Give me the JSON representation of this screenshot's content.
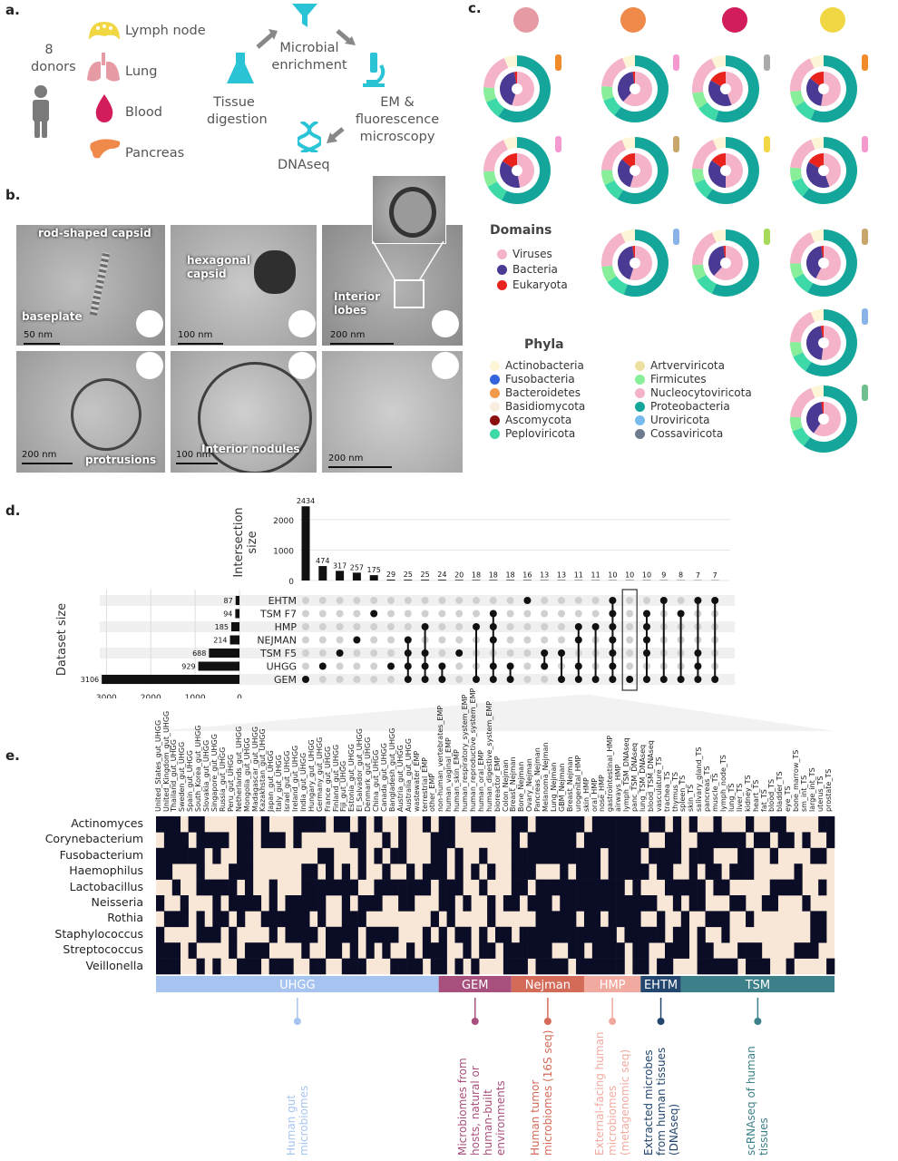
{
  "panels": {
    "a": "a.",
    "b": "b.",
    "c": "c.",
    "d": "d.",
    "e": "e."
  },
  "panel_a": {
    "donors_count": "8",
    "donors_label": "donors",
    "tissues": [
      "Lymph node",
      "Lung",
      "Blood",
      "Pancreas"
    ],
    "steps": [
      "Tissue digestion",
      "Microbial enrichment",
      "EM & fluorescence microscopy",
      "DNAseq"
    ]
  },
  "panel_b": {
    "labels": [
      "rod-shaped capsid",
      "baseplate",
      "hexagonal capsid",
      "Interior lobes",
      "protrusions",
      "Interior nodules"
    ],
    "scalebars": [
      "50  nm",
      "100  nm",
      "200  nm",
      "200  nm",
      "100  nm",
      "200  nm"
    ]
  },
  "panel_c": {
    "domains_title": "Domains",
    "domains": [
      {
        "name": "Viruses",
        "color": "#f4b3c8"
      },
      {
        "name": "Bacteria",
        "color": "#4a3a93"
      },
      {
        "name": "Eukaryota",
        "color": "#e8231e"
      }
    ],
    "phyla_title": "Phyla",
    "phyla": [
      {
        "name": "Actinobacteria",
        "color": "#fdf6d6"
      },
      {
        "name": "Artverviricota",
        "color": "#eee0a0"
      },
      {
        "name": "Fusobacteria",
        "color": "#3366dd"
      },
      {
        "name": "Firmicutes",
        "color": "#88ee99"
      },
      {
        "name": "Bacteroidetes",
        "color": "#f39a4b"
      },
      {
        "name": "Nucleocytoviricota",
        "color": "#f4b3c8"
      },
      {
        "name": "Basidiomycota",
        "color": "#faeee0"
      },
      {
        "name": "Proteobacteria",
        "color": "#14a69a"
      },
      {
        "name": "Ascomycota",
        "color": "#8b0f0f"
      },
      {
        "name": "Uroviricota",
        "color": "#77bbee"
      },
      {
        "name": "Peploviricota",
        "color": "#3ed9a9"
      },
      {
        "name": "Cossaviricota",
        "color": "#6d7b90"
      }
    ]
  },
  "chart_data": [
    {
      "type": "bar",
      "title": "",
      "ylabel": "Intersection size",
      "ylim": [
        0,
        2500
      ],
      "yticks": [
        "0",
        "1000",
        "2000"
      ],
      "values": [
        2434,
        474,
        317,
        257,
        175,
        29,
        25,
        25,
        24,
        20,
        18,
        18,
        18,
        16,
        13,
        13,
        11,
        11,
        10,
        10,
        10,
        9,
        8,
        7,
        7
      ],
      "value_labels": [
        "2434",
        "474",
        "317",
        "257",
        "175",
        "29",
        "25",
        "25",
        "24",
        "20",
        "18",
        "18",
        "18",
        "16",
        "13",
        "13",
        "11",
        "11",
        "10",
        "10",
        "10",
        "9",
        "8",
        "7",
        "7"
      ]
    },
    {
      "type": "bar",
      "orientation": "horizontal",
      "xlabel": "",
      "ylabel": "Dataset size",
      "categories": [
        "EHTM",
        "TSM F7",
        "HMP",
        "NEJMAN",
        "TSM F5",
        "UHGG",
        "GEM"
      ],
      "values": [
        87,
        94,
        185,
        214,
        688,
        929,
        3106
      ],
      "value_labels": [
        "87",
        "94",
        "185",
        "214",
        "688",
        "929",
        "3106"
      ],
      "xticks": [
        "3000",
        "2000",
        "1000",
        "0"
      ],
      "xlim": [
        3150,
        0
      ]
    },
    {
      "type": "heatmap",
      "rows": [
        "Actinomyces",
        "Corynebacterium",
        "Fusobacterium",
        "Haemophilus",
        "Lactobacillus",
        "Neisseria",
        "Rothia",
        "Staphylococcus",
        "Streptococcus",
        "Veillonella"
      ],
      "groups": [
        {
          "name": "UHGG",
          "color": "#a7c4f1",
          "span": [
            0,
            35
          ]
        },
        {
          "name": "GEM",
          "color": "#a8507d",
          "span": [
            35,
            44
          ]
        },
        {
          "name": "Nejman",
          "color": "#d46a58",
          "span": [
            44,
            53
          ]
        },
        {
          "name": "HMP",
          "color": "#f1aaa0",
          "span": [
            53,
            60
          ]
        },
        {
          "name": "EHTM",
          "color": "#23466f",
          "span": [
            60,
            65
          ]
        },
        {
          "name": "TSM",
          "color": "#3c8089",
          "span": [
            65,
            84
          ]
        }
      ],
      "columns": [
        "United_States_gut_UHGG",
        "United_Kingdom_gut_UHGG",
        "Thailand_gut_UHGG",
        "Sweden_gut_UHGG",
        "Spain_gut_UHGG",
        "South_Korea_gut_UHGG",
        "Slovakia_gut_UHGG",
        "Singapore_gut_UHGG",
        "Russia_gut_UHGG",
        "Peru_gut_UHGG",
        "Netherlands_gut_UHGG",
        "Mongolia_gut_UHGG",
        "Madagascar_gut_UHGG",
        "Kazakhstan_gut_UHGG",
        "Japan_gut_UHGG",
        "Italy_gut_UHGG",
        "Israel_gut_UHGG",
        "Ireland_gut_UHGG",
        "India_gut_UHGG",
        "Hungary_gut_UHGG",
        "Germany_gut_UHGG",
        "France_gut_UHGG",
        "Finland_gut_UHGG",
        "Fiji_gut_UHGG",
        "Estonia_gut_UHGG",
        "El_Salvador_gut_UHGG",
        "Denmark_gut_UHGG",
        "China_gut_UHGG",
        "Canada_gut_UHGG",
        "Bangladesh_gut_UHGG",
        "Austria_gut_UHGG",
        "Australia_gut_UHGG",
        "wastewater_EMP",
        "terrestrial_EMP",
        "other_EMP",
        "non-human_vertebrates_EMP",
        "human_vaginal_EMP",
        "human_skin_EMP",
        "human_respiratory_system_EMP",
        "human_reproductive_system_EMP",
        "human_oral_EMP",
        "human_digestive_system_EMP",
        "bioreactor_EMP",
        "Colon_Nejman",
        "Breast_Nejman",
        "Bone_Nejman",
        "Ovary_Nejman",
        "Pancreas_Nejman",
        "Melanoma_Nejman",
        "Lung_Nejman",
        "GBM_Nejman",
        "Breast_Nejman",
        "urogenital_HMP",
        "skin_HMP",
        "oral_HMP",
        "nose_HMP",
        "gastrointestinal_HMP",
        "airways_HMP",
        "lymph_TSM_DNAseq",
        "panc_TSM_DNAseq",
        "lung_TSM_DNAseq",
        "blood_TSM_DNAseq",
        "vasculature_TS",
        "trachea_TS",
        "thymus_TS",
        "spleen_TS",
        "skin_TS",
        "salivary_gland_TS",
        "pancreas_TS",
        "muscle_TS",
        "lymph_node_TS",
        "lung_TS",
        "liver_TS",
        "kidney_TS",
        "heart_TS",
        "fat_TS",
        "blood_TS",
        "bladder_TS",
        "eye_TS",
        "bone_marrow_TS",
        "sm_int_TS",
        "large_int_TS",
        "uterus_TS",
        "prostate_TS"
      ]
    }
  ],
  "annotations": [
    {
      "text": "Human gut microbiomes",
      "color": "#a7c4f1"
    },
    {
      "text": "Microbiomes from hosts, natural or human-built environments",
      "color": "#a8507d"
    },
    {
      "text": "Human tumor microbiomes (16S seq)",
      "color": "#d46a58"
    },
    {
      "text": "External-facing human microbiomes (metagenomic seq)",
      "color": "#f1aaa0"
    },
    {
      "text": "Extracted microbes from human tissues (DNAseq)",
      "color": "#23466f"
    },
    {
      "text": "scRNAseq of human tissues",
      "color": "#3c8089"
    }
  ],
  "icons": [
    "lymph-node-icon",
    "lung-icon",
    "blood-drop-icon",
    "pancreas-icon",
    "person-icon",
    "funnel-icon",
    "flask-icon",
    "microscope-icon",
    "dna-icon"
  ]
}
